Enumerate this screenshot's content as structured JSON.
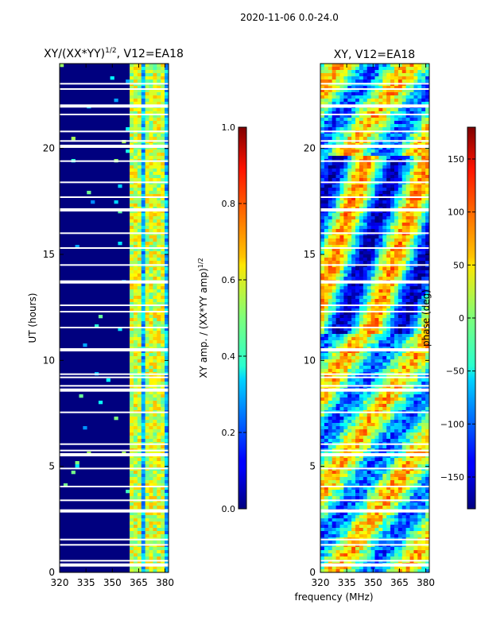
{
  "figure": {
    "suptitle": "2020-11-06 0.0-24.0",
    "shared_xlabel": "frequency (MHz)"
  },
  "chart_data": [
    {
      "type": "heatmap",
      "title_main": "XY/(XX*YY)",
      "title_sup": "1/2",
      "title_rest": ", V12=EA18",
      "ylabel": "UT (hours)",
      "xlim": [
        320,
        382
      ],
      "ylim": [
        0,
        24
      ],
      "xticks": [
        320,
        335,
        350,
        365,
        380
      ],
      "yticks": [
        0,
        5,
        10,
        15,
        20
      ],
      "colormap": "jet",
      "colorbar": {
        "label_main": "XY amp. / (XX*YY amp)",
        "label_sup": "1/2",
        "range": [
          0.0,
          1.0
        ],
        "ticks": [
          "0.0",
          "0.2",
          "0.4",
          "0.6",
          "0.8",
          "1.0"
        ],
        "tick_values": [
          0.0,
          0.2,
          0.4,
          0.6,
          0.8,
          1.0
        ]
      }
    },
    {
      "type": "heatmap",
      "title": "XY, V12=EA18",
      "xlim": [
        320,
        382
      ],
      "ylim": [
        0,
        24
      ],
      "xticks": [
        320,
        335,
        350,
        365,
        380
      ],
      "yticks": [
        0,
        5,
        10,
        15,
        20
      ],
      "colormap": "jet",
      "colorbar": {
        "label": "phase (deg)",
        "range": [
          -180,
          180
        ],
        "ticks": [
          "−150",
          "−100",
          "−50",
          "0",
          "50",
          "100",
          "150"
        ],
        "tick_values": [
          -150,
          -100,
          -50,
          0,
          50,
          100,
          150
        ]
      }
    }
  ]
}
